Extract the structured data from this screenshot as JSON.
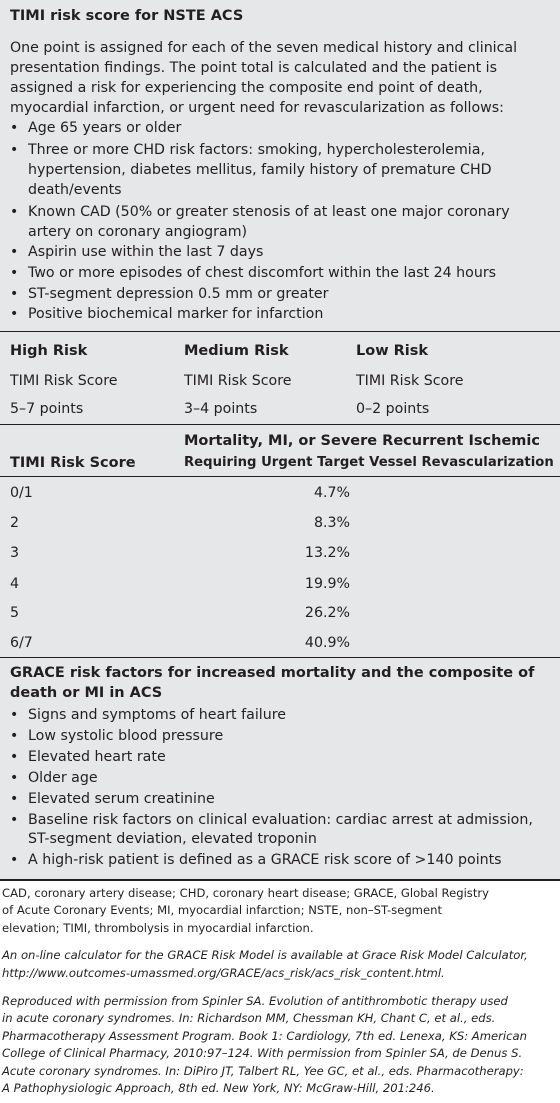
{
  "timi": {
    "title": "TIMI risk score for NSTE ACS",
    "intro_lines": [
      "One point is assigned for each of the seven medical history and clinical",
      "presentation findings. The point total is calculated and the patient is",
      "assigned a risk for experiencing the composite end point of death,",
      "myocardial infarction, or urgent need for revascularization as follows:"
    ],
    "bullets": [
      [
        "Age 65 years or older"
      ],
      [
        "Three or more CHD risk factors: smoking, hypercholesterolemia,",
        "hypertension, diabetes mellitus, family history of premature CHD",
        "death/events"
      ],
      [
        "Known CAD (50% or greater stenosis of at least one major coronary",
        "artery on coronary angiogram)"
      ],
      [
        "Aspirin use within the last 7 days"
      ],
      [
        "Two or more episodes of chest discomfort within the last 24 hours"
      ],
      [
        "ST-segment depression 0.5 mm or greater"
      ],
      [
        "Positive biochemical marker for infarction"
      ]
    ]
  },
  "risk_levels": [
    {
      "label": "High Risk",
      "score_label": "TIMI Risk Score",
      "points": "5–7 points"
    },
    {
      "label": "Medium Risk",
      "score_label": "TIMI Risk Score",
      "points": "3–4 points"
    },
    {
      "label": "Low Risk",
      "score_label": "TIMI Risk Score",
      "points": "0–2 points"
    }
  ],
  "mortality_table": {
    "col1_header": "TIMI Risk Score",
    "col2_header_lines": [
      "Mortality, MI, or Severe Recurrent Ischemic",
      "Requiring Urgent Target Vessel Revascularization"
    ],
    "rows": [
      {
        "score": "0/1",
        "value": "4.7%"
      },
      {
        "score": "2",
        "value": "8.3%"
      },
      {
        "score": "3",
        "value": "13.2%"
      },
      {
        "score": "4",
        "value": "19.9%"
      },
      {
        "score": "5",
        "value": "26.2%"
      },
      {
        "score": "6/7",
        "value": "40.9%"
      }
    ]
  },
  "grace": {
    "title_lines": [
      "GRACE risk factors for increased mortality and the composite of",
      "death or MI in ACS"
    ],
    "bullets": [
      [
        "Signs and symptoms of heart failure"
      ],
      [
        "Low systolic blood pressure"
      ],
      [
        "Elevated heart rate"
      ],
      [
        "Older age"
      ],
      [
        "Elevated serum creatinine"
      ],
      [
        "Baseline risk factors on clinical evaluation: cardiac arrest at admission,",
        "ST-segment deviation, elevated troponin"
      ],
      [
        "A high-risk patient is defined as a GRACE risk score of >140 points"
      ]
    ]
  },
  "footnotes": {
    "abbreviations": [
      "CAD, coronary artery disease; CHD, coronary heart disease; GRACE, Global Registry",
      "of Acute Coronary Events; MI, myocardial infarction; NSTE, non–ST-segment",
      "elevation; TIMI, thrombolysis in myocardial infarction."
    ],
    "calculator": [
      "An on-line calculator for the GRACE Risk Model is available at Grace Risk Model Calculator,",
      "http://www.outcomes-umassmed.org/GRACE/acs_risk/acs_risk_content.html."
    ],
    "reproduced": [
      "Reproduced with permission from Spinler SA. Evolution of antithrombotic therapy used",
      "in acute coronary syndromes. In: Richardson MM, Chessman KH, Chant C, et al., eds.",
      "Pharmacotherapy Assessment Program. Book 1: Cardiology, 7th ed. Lenexa, KS: American",
      "College of Clinical Pharmacy, 2010:97–124. With permission from Spinler SA, de Denus S.",
      "Acute coronary syndromes. In: DiPiro JT, Talbert RL, Yee GC, et al., eds. Pharmacotherapy:",
      "A Pathophysiologic Approach, 8th ed. New York, NY: McGraw-Hill, 201:246."
    ]
  }
}
